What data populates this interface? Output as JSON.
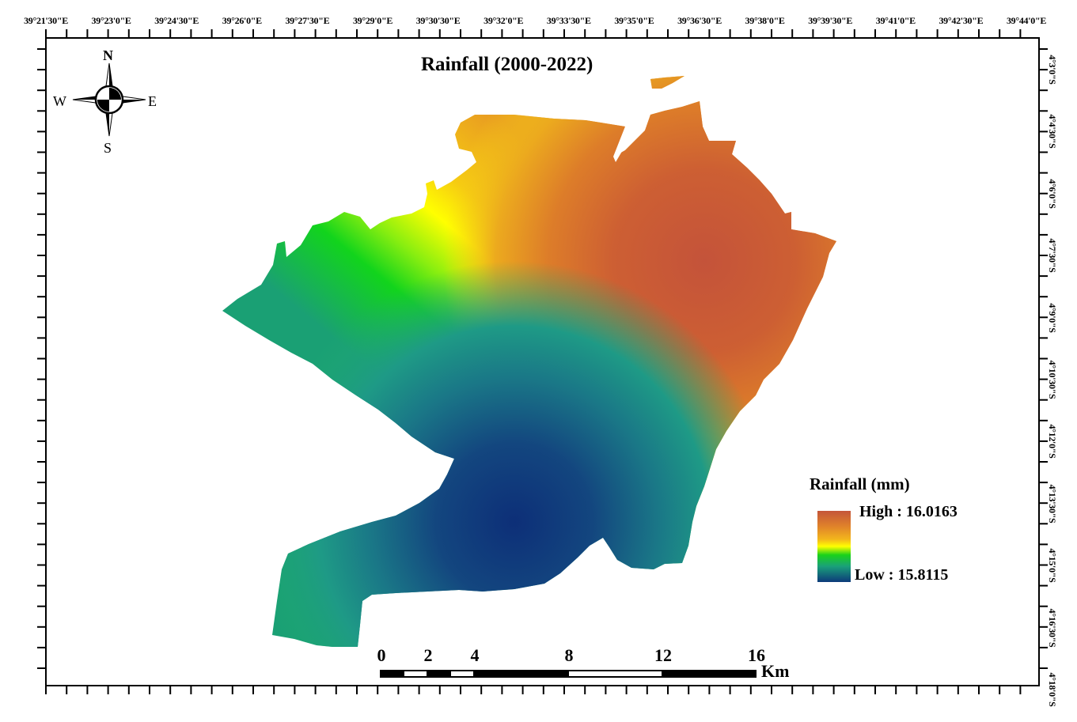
{
  "map": {
    "title": "Rainfall (2000-2022)",
    "top_axis_labels": [
      "39°21'30\"E",
      "39°23'0\"E",
      "39°24'30\"E",
      "39°26'0\"E",
      "39°27'30\"E",
      "39°29'0\"E",
      "39°30'30\"E",
      "39°32'0\"E",
      "39°33'30\"E",
      "39°35'0\"E",
      "39°36'30\"E",
      "39°38'0\"E",
      "39°39'30\"E",
      "39°41'0\"E",
      "39°42'30\"E",
      "39°44'0\"E"
    ],
    "right_axis_labels": [
      "4°3'0\"S",
      "4°4'30\"S",
      "4°6'0\"S",
      "4°7'30\"S",
      "4°9'0\"S",
      "4°10'30\"S",
      "4°12'0\"S",
      "4°13'30\"S",
      "4°15'0\"S",
      "4°16'30\"S",
      "4°18'0\"S"
    ],
    "compass": {
      "n": "N",
      "s": "S",
      "e": "E",
      "w": "W",
      "icon": "north-arrow-icon"
    },
    "legend": {
      "title": "Rainfall (mm)",
      "high_label": "High : 16.0163",
      "low_label": "Low : 15.8115",
      "colors": [
        "#c4553a",
        "#e0832a",
        "#f3b61c",
        "#ffff00",
        "#1ad21a",
        "#1aa07a",
        "#0d3a7a"
      ]
    },
    "scale_bar": {
      "ticks": [
        "0",
        "2",
        "4",
        "8",
        "12",
        "16"
      ],
      "unit": "Km"
    }
  },
  "chart_data": {
    "type": "heatmap",
    "title": "Rainfall (2000-2022)",
    "variable": "Rainfall (mm)",
    "value_range": {
      "high": 16.0163,
      "low": 15.8115
    },
    "x_ticks": [
      "39°21'30\"E",
      "39°23'0\"E",
      "39°24'30\"E",
      "39°26'0\"E",
      "39°27'30\"E",
      "39°29'0\"E",
      "39°30'30\"E",
      "39°32'0\"E",
      "39°33'30\"E",
      "39°35'0\"E",
      "39°36'30\"E",
      "39°38'0\"E",
      "39°39'30\"E",
      "39°41'0\"E",
      "39°42'30\"E",
      "39°44'0\"E"
    ],
    "y_ticks": [
      "4°3'0\"S",
      "4°4'30\"S",
      "4°6'0\"S",
      "4°7'30\"S",
      "4°9'0\"S",
      "4°10'30\"S",
      "4°12'0\"S",
      "4°13'30\"S",
      "4°15'0\"S",
      "4°16'30\"S",
      "4°18'0\"S"
    ],
    "pattern": "High rainfall centered in northeast (~39°37'E, 4°7'30\"S); low rainfall centered in south (~39°32'E, 4°14'S); gradient along NW-SE yellow band",
    "scale_km": [
      0,
      2,
      4,
      8,
      12,
      16
    ]
  }
}
